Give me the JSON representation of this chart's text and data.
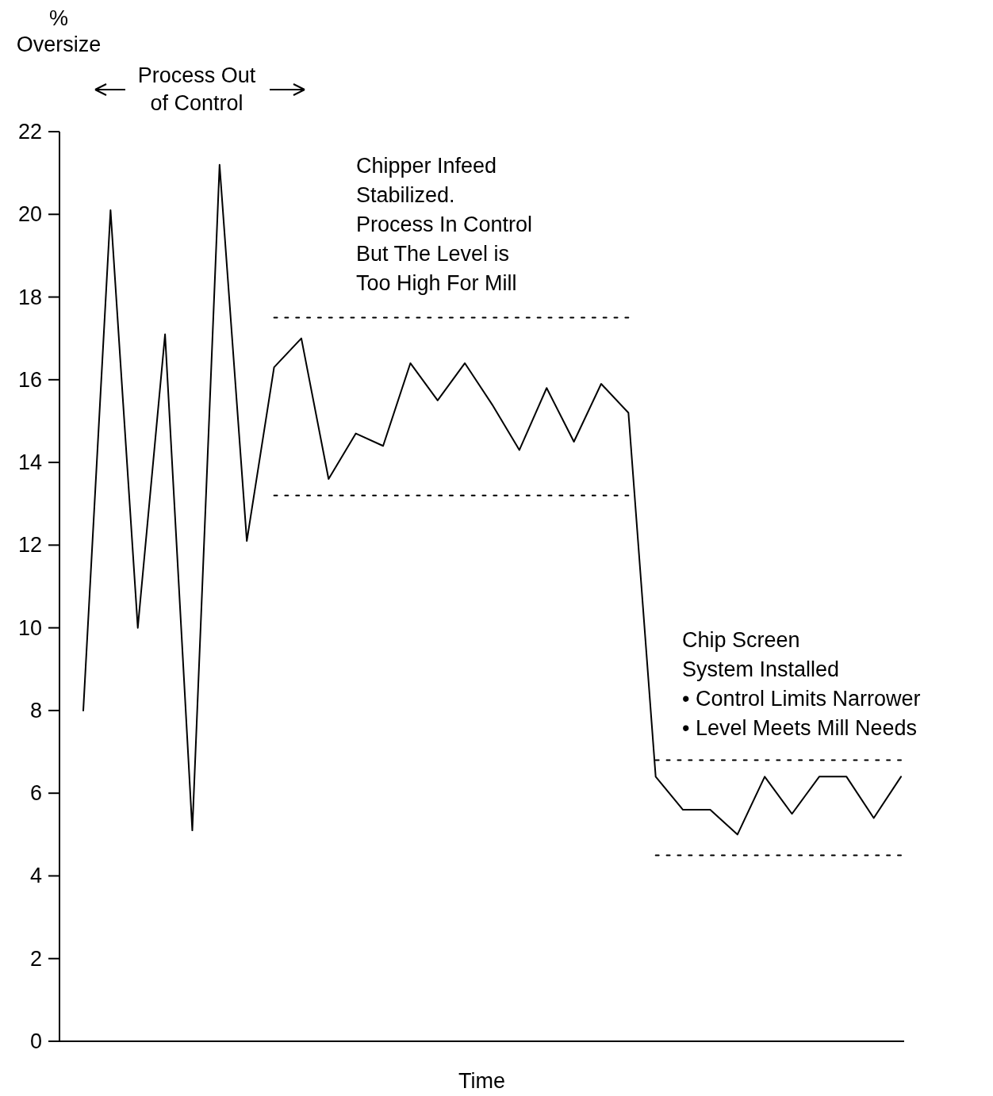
{
  "chart_data": {
    "type": "line",
    "xlabel": "Time",
    "ylabel": "% Oversize",
    "annotations": [
      "Process Out\nof Control",
      "Chipper Infeed\nStabilized.\nProcess In Control\nBut The Level is\nToo High For Mill",
      "Chip Screen\nSystem Installed\n• Control Limits Narrower\n• Level Meets Mill Needs"
    ],
    "categories": [
      null,
      null,
      null,
      null,
      null,
      null,
      null,
      null,
      null,
      null,
      null,
      null,
      null,
      null,
      null,
      null,
      null,
      null,
      null,
      null,
      null,
      null,
      null,
      null,
      null,
      null,
      null,
      null,
      null,
      null,
      null
    ],
    "ylim": [
      0,
      22
    ],
    "yticks": [
      0,
      2,
      4,
      6,
      8,
      10,
      12,
      14,
      16,
      18,
      20,
      22
    ],
    "grid": false,
    "marker": "none",
    "series": [
      {
        "color": "#000000",
        "line_style": "solid",
        "values": [
          8.0,
          20.1,
          10.0,
          17.1,
          5.1,
          21.2,
          12.1,
          16.3,
          17.0,
          13.6,
          14.7,
          14.4,
          16.4,
          15.5,
          16.4,
          15.4,
          14.3,
          15.8,
          14.5,
          15.9,
          15.2,
          6.4,
          5.6,
          5.6,
          5.0,
          6.4,
          5.5,
          6.4,
          6.4,
          5.4,
          6.4
        ]
      },
      {
        "color": "#000000",
        "line_style": "dotted",
        "values": [
          null,
          null,
          null,
          null,
          null,
          null,
          null,
          17.5,
          17.5,
          17.5,
          17.5,
          17.5,
          17.5,
          17.5,
          17.5,
          17.5,
          17.5,
          17.5,
          17.5,
          17.5,
          17.5,
          null,
          null,
          null,
          null,
          null,
          null,
          null,
          null,
          null,
          null
        ]
      },
      {
        "color": "#000000",
        "line_style": "dotted",
        "values": [
          null,
          null,
          null,
          null,
          null,
          null,
          null,
          13.2,
          13.2,
          13.2,
          13.2,
          13.2,
          13.2,
          13.2,
          13.2,
          13.2,
          13.2,
          13.2,
          13.2,
          13.2,
          13.2,
          null,
          null,
          null,
          null,
          null,
          null,
          null,
          null,
          null,
          null
        ]
      },
      {
        "color": "#000000",
        "line_style": "dotted",
        "values": [
          null,
          null,
          null,
          null,
          null,
          null,
          null,
          null,
          null,
          null,
          null,
          null,
          null,
          null,
          null,
          null,
          null,
          null,
          null,
          null,
          null,
          6.8,
          6.8,
          6.8,
          6.8,
          6.8,
          6.8,
          6.8,
          6.8,
          6.8,
          6.8
        ]
      },
      {
        "color": "#000000",
        "line_style": "dotted",
        "values": [
          null,
          null,
          null,
          null,
          null,
          null,
          null,
          null,
          null,
          null,
          null,
          null,
          null,
          null,
          null,
          null,
          null,
          null,
          null,
          null,
          null,
          4.5,
          4.5,
          4.5,
          4.5,
          4.5,
          4.5,
          4.5,
          4.5,
          4.5,
          4.5
        ]
      }
    ]
  }
}
